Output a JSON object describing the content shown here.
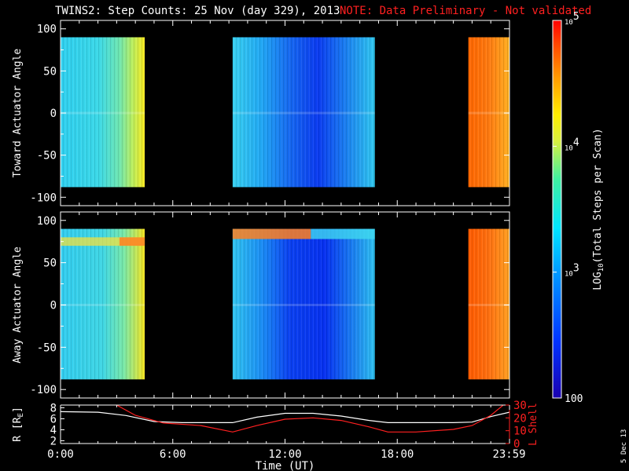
{
  "title": {
    "main": "TWINS2: Step Counts: 25 Nov (day 329), 2013",
    "note": "NOTE: Data Preliminary - Not validated",
    "note_color": "#ff2020"
  },
  "date_stamp": "5 Dec 13",
  "chart_data": [
    {
      "type": "heatmap",
      "ylabel": "Toward Actuator Angle",
      "ylim": [
        -110,
        110
      ],
      "yticks": [
        "100",
        "50",
        "0",
        "-50",
        "-100"
      ],
      "ytick_values": [
        100,
        50,
        0,
        -50,
        -100
      ],
      "xlim": [
        0,
        24
      ],
      "data_range_y": [
        -88,
        90
      ],
      "segments": [
        {
          "start": 0,
          "end": 4.5,
          "description": "moderate counts rising from cyan to yellow near end"
        },
        {
          "start": 9.2,
          "end": 16.8,
          "description": "low counts, deep blue around 12:00-15:00"
        },
        {
          "start": 21.8,
          "end": 24,
          "description": "high counts, orange-red"
        }
      ],
      "gaps": [
        [
          4.5,
          9.2
        ],
        [
          16.8,
          21.8
        ]
      ]
    },
    {
      "type": "heatmap",
      "ylabel": "Away Actuator Angle",
      "ylim": [
        -110,
        110
      ],
      "yticks": [
        "100",
        "50",
        "0",
        "-50",
        "-100"
      ],
      "ytick_values": [
        100,
        50,
        0,
        -50,
        -100
      ],
      "xlim": [
        0,
        24
      ],
      "data_range_y": [
        -88,
        90
      ],
      "segments": [
        {
          "start": 0,
          "end": 4.5,
          "description": "moderate counts with yellow/orange band near +75"
        },
        {
          "start": 9.2,
          "end": 16.8,
          "description": "low counts, orange band near +85 early in segment"
        },
        {
          "start": 21.8,
          "end": 24,
          "description": "high counts, orange-red"
        }
      ],
      "gaps": [
        [
          4.5,
          9.2
        ],
        [
          16.8,
          21.8
        ]
      ]
    },
    {
      "type": "line",
      "xlabel": "Time (UT)",
      "xticks": [
        "0:00",
        "6:00",
        "12:00",
        "18:00",
        "23:59"
      ],
      "xtick_values": [
        0,
        6,
        12,
        18,
        23.98
      ],
      "xlim": [
        0,
        24
      ],
      "ylabel_left": "R [R",
      "ylabel_left_sub": "E",
      "ylabel_left_end": "]",
      "ylim_left": [
        1.5,
        8.5
      ],
      "yticks_left": [
        "8",
        "6",
        "4",
        "2"
      ],
      "ytick_values_left": [
        8,
        6,
        4,
        2
      ],
      "ylabel_right": "L Shell",
      "ylim_right": [
        0,
        30
      ],
      "yticks_right": [
        "30",
        "20",
        "10",
        "0"
      ],
      "ytick_values_right": [
        30,
        20,
        10,
        0
      ],
      "right_axis_color": "#ff2020",
      "series": [
        {
          "axis": "left",
          "color": "#ffffff",
          "x": [
            0,
            2,
            3.5,
            5,
            6.5,
            8,
            9.2,
            10.5,
            12,
            13.5,
            15,
            16.5,
            17.5,
            19,
            21,
            22,
            23,
            24
          ],
          "y": [
            7.3,
            7.2,
            6.6,
            5.5,
            5.3,
            5.3,
            5.3,
            6.3,
            7.0,
            7.0,
            6.5,
            5.7,
            5.3,
            5.3,
            5.3,
            5.4,
            6.4,
            7.2
          ]
        },
        {
          "axis": "right",
          "color": "#ff2020",
          "x": [
            3.0,
            4.0,
            5.5,
            7.5,
            9.2,
            10.5,
            12,
            13.5,
            15,
            16.5,
            17.5,
            19,
            21,
            22,
            23,
            24
          ],
          "y": [
            30,
            22,
            16,
            14,
            9,
            14,
            19,
            20,
            18,
            13,
            9,
            9,
            11,
            14,
            22,
            34
          ]
        }
      ]
    }
  ],
  "colorbar": {
    "scale": "log",
    "range": [
      100,
      100000
    ],
    "ticks": [
      {
        "base": "10",
        "exp": "5",
        "value": 100000
      },
      {
        "base": "10",
        "exp": "4",
        "value": 10000
      },
      {
        "base": "10",
        "exp": "3",
        "value": 1000
      },
      {
        "base": "100",
        "exp": "",
        "value": 100
      }
    ],
    "label_pre": "LOG",
    "label_sub": "10",
    "label_post": "(Total Steps per Scan)"
  }
}
